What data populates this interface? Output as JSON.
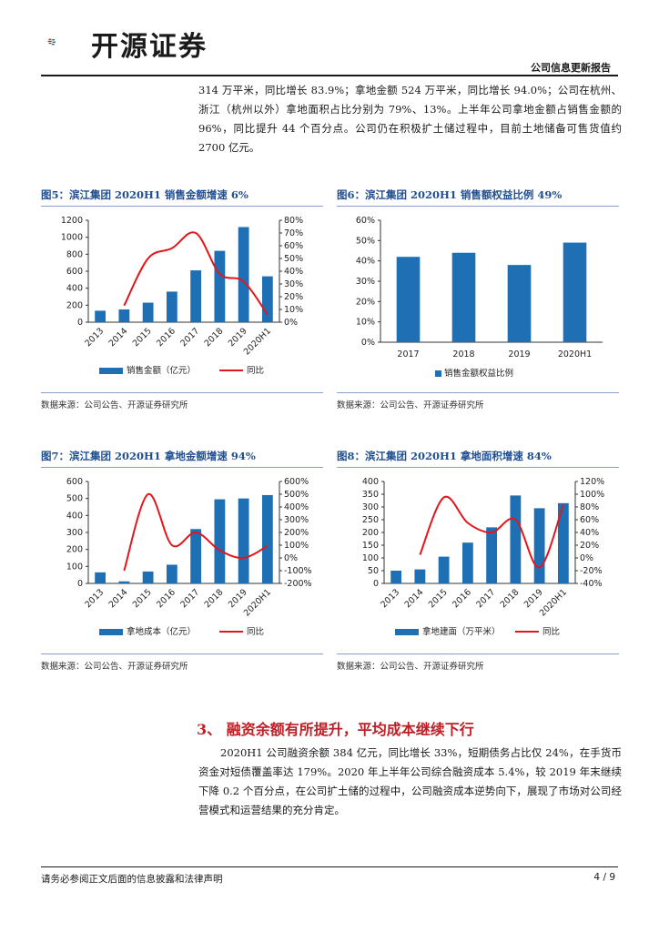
{
  "header": {
    "brand": "开源证券",
    "report_type": "公司信息更新报告"
  },
  "intro_paragraph": "314 万平米，同比增长 83.9%；拿地金额 524 万平米，同比增长 94.0%；公司在杭州、浙江（杭州以外）拿地面积占比分别为 79%、13%。上半年公司拿地金额占销售金额的 96%，同比提升 44 个百分点。公司仍在积极扩土储过程中，目前土地储备可售货值约 2700 亿元。",
  "colors": {
    "bar": "#1f6fb5",
    "line": "#e3161b",
    "title": "#1f4e91",
    "section": "#c01d25"
  },
  "figures": [
    {
      "title": "图5：滨江集团 2020H1 销售金额增速 6%",
      "source": "数据来源：公司公告、开源证券研究所"
    },
    {
      "title": "图6：滨江集团 2020H1 销售额权益比例 49%",
      "source": "数据来源：公司公告、开源证券研究所"
    },
    {
      "title": "图7：滨江集团 2020H1 拿地金额增速 94%",
      "source": "数据来源：公司公告、开源证券研究所"
    },
    {
      "title": "图8：滨江集团 2020H1 拿地面积增速 84%",
      "source": "数据来源：公司公告、开源证券研究所"
    }
  ],
  "chart_data": [
    {
      "type": "bar",
      "categories": [
        "2013",
        "2014",
        "2015",
        "2016",
        "2017",
        "2018",
        "2019",
        "2020H1"
      ],
      "series": [
        {
          "name": "销售金额（亿元）",
          "type": "bar",
          "axis": "left",
          "values": [
            135,
            150,
            230,
            360,
            610,
            840,
            1120,
            540
          ]
        },
        {
          "name": "同比",
          "type": "line",
          "axis": "right",
          "values": [
            null,
            13,
            50,
            58,
            70,
            38,
            32,
            6
          ]
        }
      ],
      "ylim_left": [
        0,
        1200
      ],
      "yticks_left": [
        "0",
        "200",
        "400",
        "600",
        "800",
        "1000",
        "1200"
      ],
      "ylim_right": [
        0,
        80
      ],
      "yticks_right": [
        "0%",
        "10%",
        "20%",
        "30%",
        "40%",
        "50%",
        "60%",
        "70%",
        "80%"
      ],
      "legend": "bottom"
    },
    {
      "type": "bar",
      "categories": [
        "2017",
        "2018",
        "2019",
        "2020H1"
      ],
      "series": [
        {
          "name": "销售金额权益比例",
          "values": [
            42,
            44,
            38,
            49
          ]
        }
      ],
      "ylim": [
        0,
        60
      ],
      "yticks": [
        "0%",
        "10%",
        "20%",
        "30%",
        "40%",
        "50%",
        "60%"
      ],
      "legend": "bottom"
    },
    {
      "type": "bar",
      "categories": [
        "2013",
        "2014",
        "2015",
        "2016",
        "2017",
        "2018",
        "2019",
        "2020H1"
      ],
      "series": [
        {
          "name": "拿地成本（亿元）",
          "type": "bar",
          "axis": "left",
          "values": [
            65,
            12,
            70,
            110,
            320,
            495,
            500,
            520
          ]
        },
        {
          "name": "同比",
          "type": "line",
          "axis": "right",
          "values": [
            null,
            -100,
            500,
            100,
            200,
            60,
            0,
            94
          ]
        }
      ],
      "ylim_left": [
        0,
        600
      ],
      "yticks_left": [
        "0",
        "100",
        "200",
        "300",
        "400",
        "500",
        "600"
      ],
      "ylim_right": [
        -200,
        600
      ],
      "yticks_right": [
        "-200%",
        "-100%",
        "0%",
        "100%",
        "200%",
        "300%",
        "400%",
        "500%",
        "600%"
      ],
      "legend": "bottom"
    },
    {
      "type": "bar",
      "categories": [
        "2013",
        "2014",
        "2015",
        "2016",
        "2017",
        "2018",
        "2019",
        "2020H1"
      ],
      "series": [
        {
          "name": "拿地建面（万平米）",
          "type": "bar",
          "axis": "left",
          "values": [
            50,
            55,
            105,
            160,
            220,
            345,
            295,
            315
          ]
        },
        {
          "name": "同比",
          "type": "line",
          "axis": "right",
          "values": [
            null,
            5,
            95,
            55,
            40,
            60,
            -15,
            84
          ]
        }
      ],
      "ylim_left": [
        0,
        400
      ],
      "yticks_left": [
        "0",
        "50",
        "100",
        "150",
        "200",
        "250",
        "300",
        "350",
        "400"
      ],
      "ylim_right": [
        -40,
        120
      ],
      "yticks_right": [
        "-40%",
        "-20%",
        "0%",
        "20%",
        "40%",
        "60%",
        "80%",
        "100%",
        "120%"
      ],
      "legend": "bottom"
    }
  ],
  "section": {
    "title": "3、 融资余额有所提升，平均成本继续下行",
    "paragraph": "2020H1 公司融资余额 384 亿元，同比增长 33%，短期债务占比仅 24%，在手货币资金对短债覆盖率达 179%。2020 年上半年公司综合融资成本 5.4%，较 2019 年末继续下降 0.2 个百分点，在公司扩土储的过程中，公司融资成本逆势向下，展现了市场对公司经营模式和运营结果的充分肯定。"
  },
  "footer": {
    "disclaimer": "请务必参阅正文后面的信息披露和法律声明",
    "page": "4 / 9"
  }
}
